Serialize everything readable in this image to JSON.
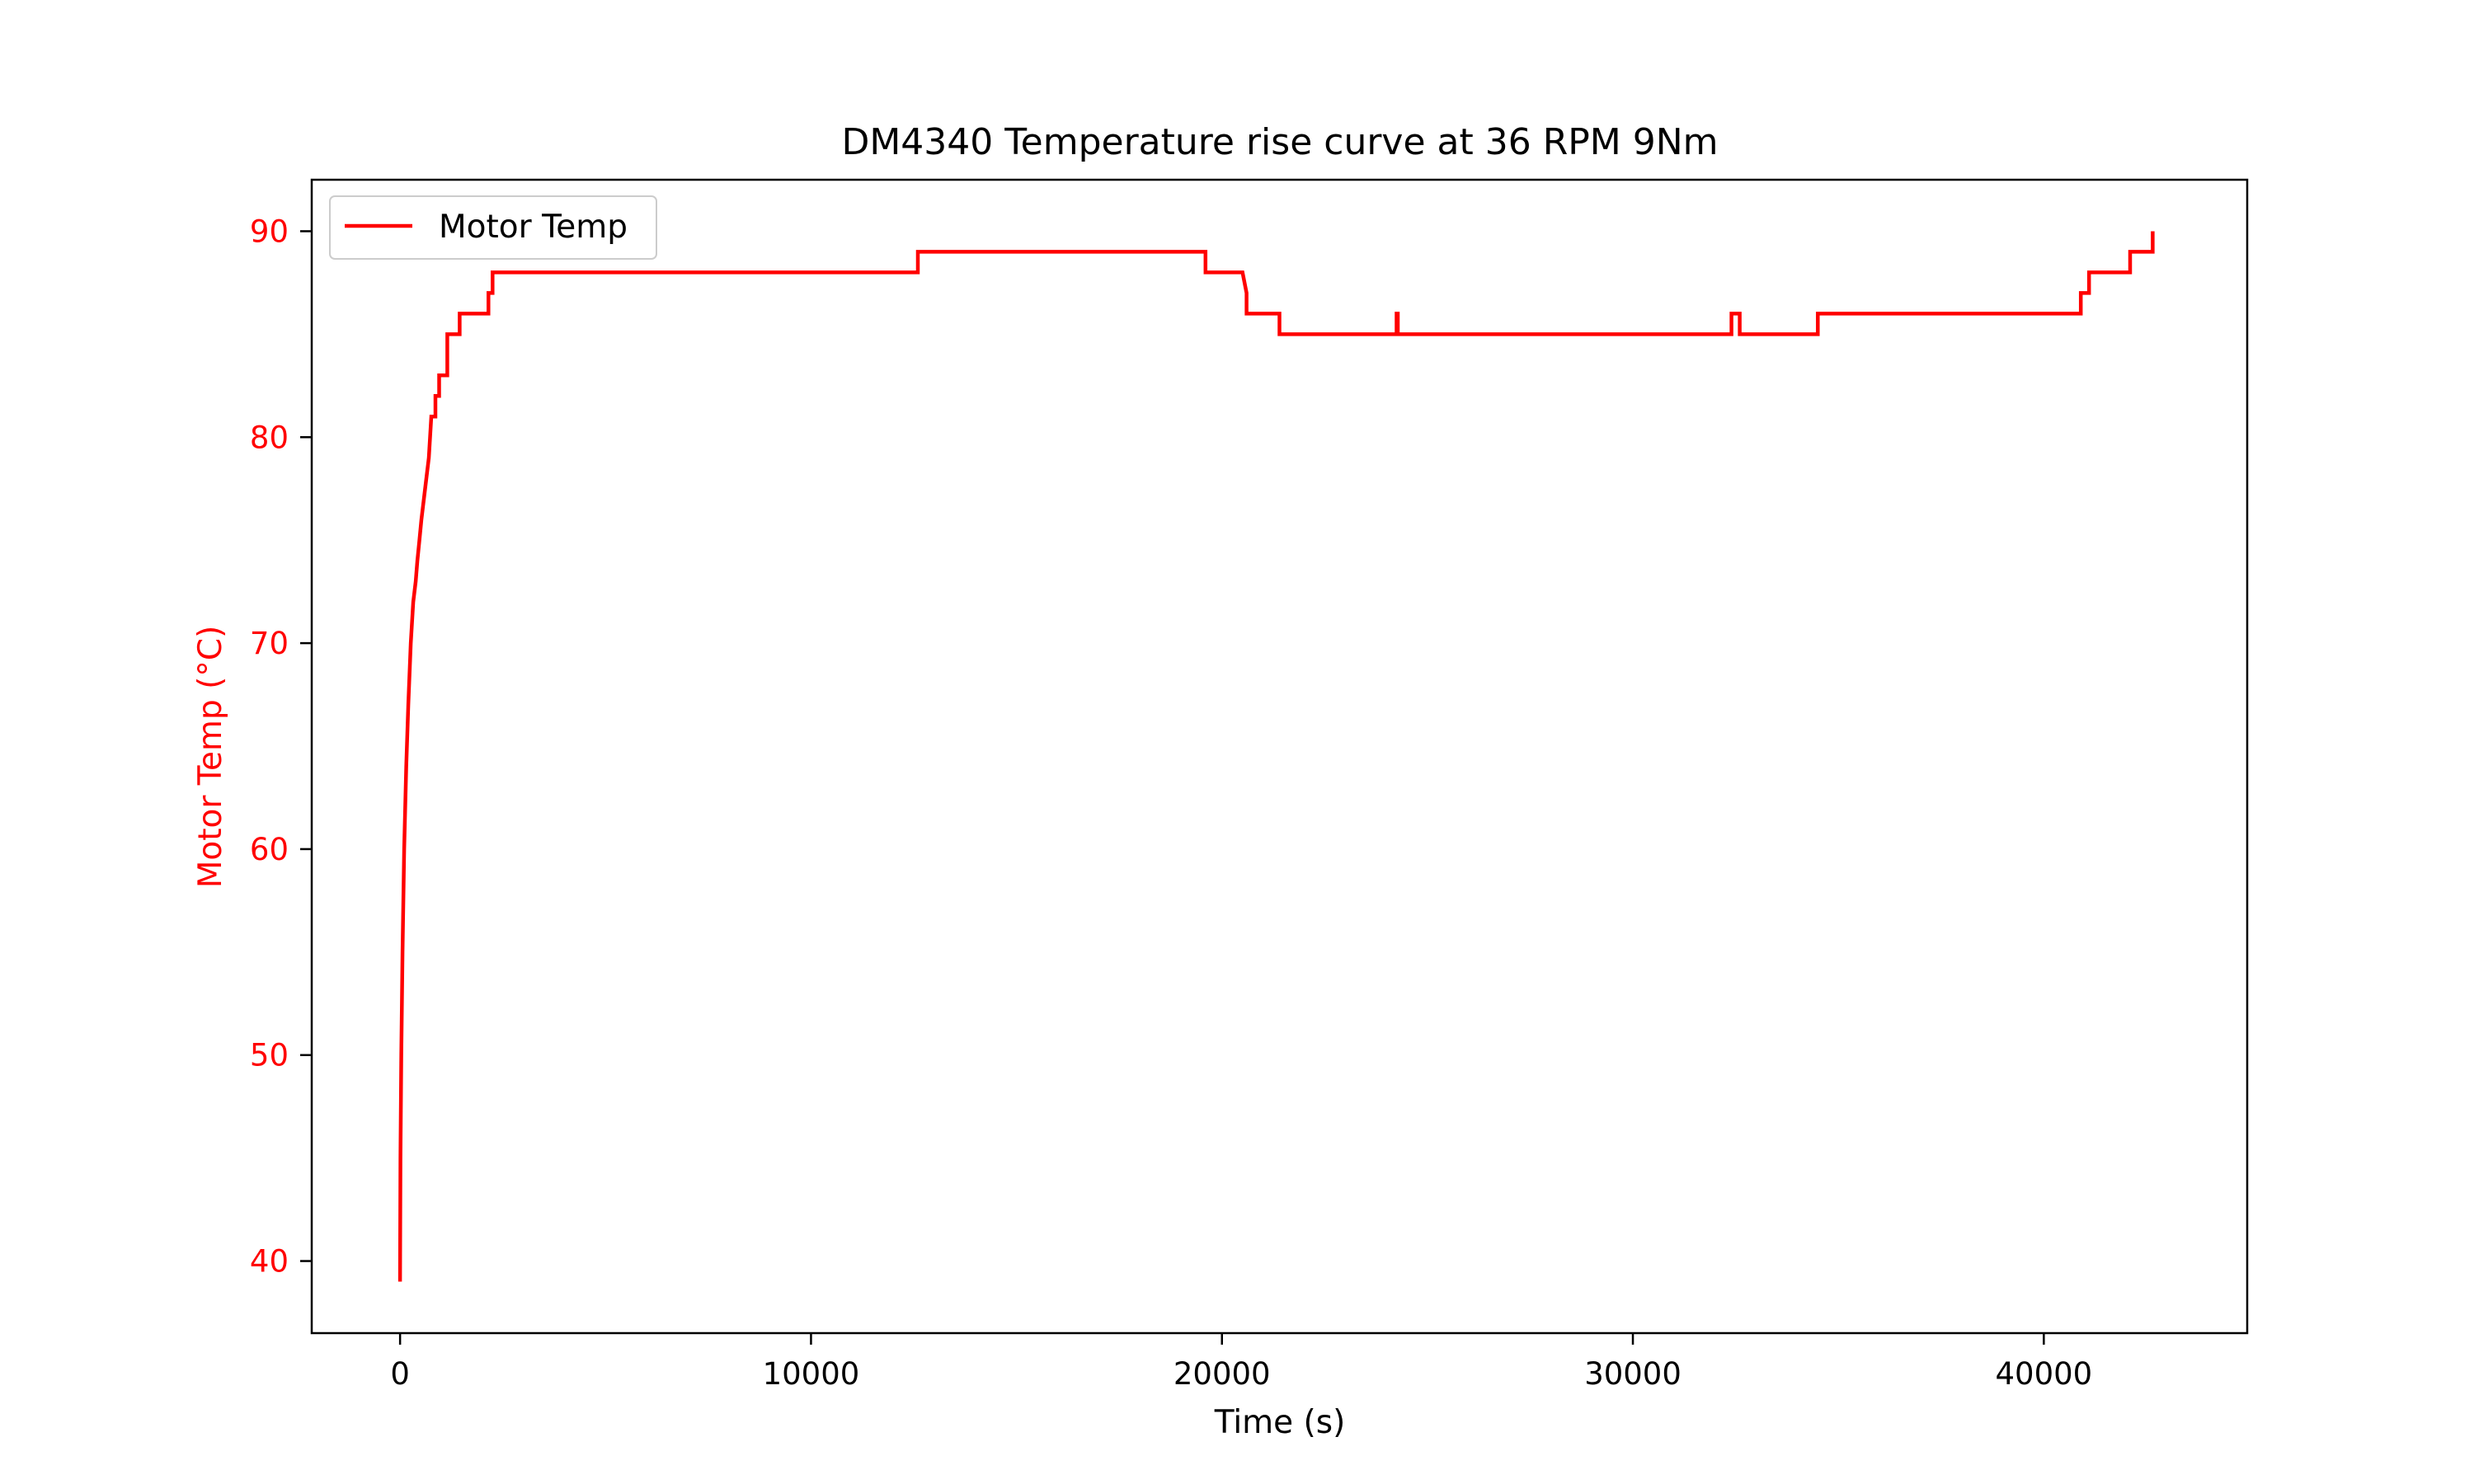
{
  "chart_data": {
    "type": "line",
    "title": "DM4340 Temperature rise curve at 36 RPM 9Nm",
    "xlabel": "Time (s)",
    "ylabel": "Motor Temp (°C)",
    "xlim": [
      -2150,
      44950
    ],
    "ylim": [
      36.5,
      92.5
    ],
    "xticks": [
      0,
      10000,
      20000,
      30000,
      40000
    ],
    "yticks": [
      40,
      50,
      60,
      70,
      80,
      90
    ],
    "grid": false,
    "legend_position": "upper-left",
    "colors": {
      "series": "#ff0000",
      "axis_text": "#ff0000",
      "frame": "#000000"
    },
    "series": [
      {
        "name": "Motor Temp",
        "color": "#ff0000",
        "points": [
          [
            0,
            39
          ],
          [
            10,
            45
          ],
          [
            30,
            50
          ],
          [
            60,
            55
          ],
          [
            100,
            60
          ],
          [
            150,
            64
          ],
          [
            200,
            67
          ],
          [
            260,
            70
          ],
          [
            320,
            72
          ],
          [
            380,
            73
          ],
          [
            420,
            74
          ],
          [
            470,
            75
          ],
          [
            520,
            76
          ],
          [
            580,
            77
          ],
          [
            640,
            78
          ],
          [
            700,
            79
          ],
          [
            760,
            81
          ],
          [
            860,
            81
          ],
          [
            860,
            82
          ],
          [
            950,
            82
          ],
          [
            950,
            83
          ],
          [
            1150,
            83
          ],
          [
            1150,
            85
          ],
          [
            1450,
            85
          ],
          [
            1450,
            86
          ],
          [
            2150,
            86
          ],
          [
            2150,
            87
          ],
          [
            2250,
            87
          ],
          [
            2250,
            88
          ],
          [
            12600,
            88
          ],
          [
            12600,
            89
          ],
          [
            19600,
            89
          ],
          [
            19600,
            88
          ],
          [
            20500,
            88
          ],
          [
            20600,
            87
          ],
          [
            20600,
            86
          ],
          [
            21400,
            86
          ],
          [
            21400,
            85
          ],
          [
            24250,
            85
          ],
          [
            24250,
            86
          ],
          [
            24280,
            86
          ],
          [
            24280,
            85
          ],
          [
            32400,
            85
          ],
          [
            32400,
            86
          ],
          [
            32600,
            86
          ],
          [
            32600,
            85
          ],
          [
            34500,
            85
          ],
          [
            34500,
            86
          ],
          [
            40900,
            86
          ],
          [
            40900,
            87
          ],
          [
            41100,
            87
          ],
          [
            41100,
            88
          ],
          [
            42100,
            88
          ],
          [
            42100,
            89
          ],
          [
            42650,
            89
          ],
          [
            42650,
            90
          ]
        ]
      }
    ]
  }
}
